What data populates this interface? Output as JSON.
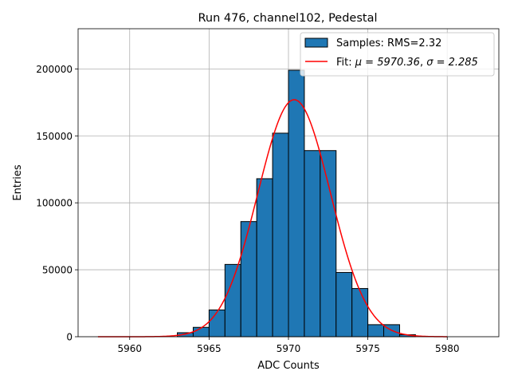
{
  "chart_data": {
    "type": "bar",
    "title": "Run 476, channel102, Pedestal",
    "xlabel": "ADC Counts",
    "ylabel": "Entries",
    "xlim": [
      5956.75,
      5983.25
    ],
    "ylim": [
      0,
      230000
    ],
    "xticks": [
      5960,
      5965,
      5970,
      5975,
      5980
    ],
    "yticks": [
      0,
      50000,
      100000,
      150000,
      200000
    ],
    "grid": true,
    "legend_position": "top-right",
    "histogram": {
      "name": "Samples: RMS=2.32",
      "color": "#1f77b4",
      "bin_edges": [
        5962,
        5963,
        5964,
        5965,
        5966,
        5967,
        5968,
        5969,
        5970,
        5971,
        5972,
        5973,
        5974,
        5975,
        5976,
        5977,
        5978
      ],
      "counts": [
        0,
        3000,
        7000,
        20000,
        54000,
        86000,
        118000,
        152000,
        199000,
        139000,
        139000,
        48000,
        36000,
        9000,
        9000,
        1500
      ]
    },
    "fit": {
      "name": "Fit: μ = 5970.36, σ = 2.285",
      "legend_prefix": "Fit: ",
      "mu_label": "μ = 5970.36",
      "sigma_label": "σ = 2.285",
      "color": "#ff0000",
      "mu": 5970.36,
      "sigma": 2.285,
      "amplitude": 177000,
      "x_range": [
        5958,
        5980
      ]
    }
  }
}
